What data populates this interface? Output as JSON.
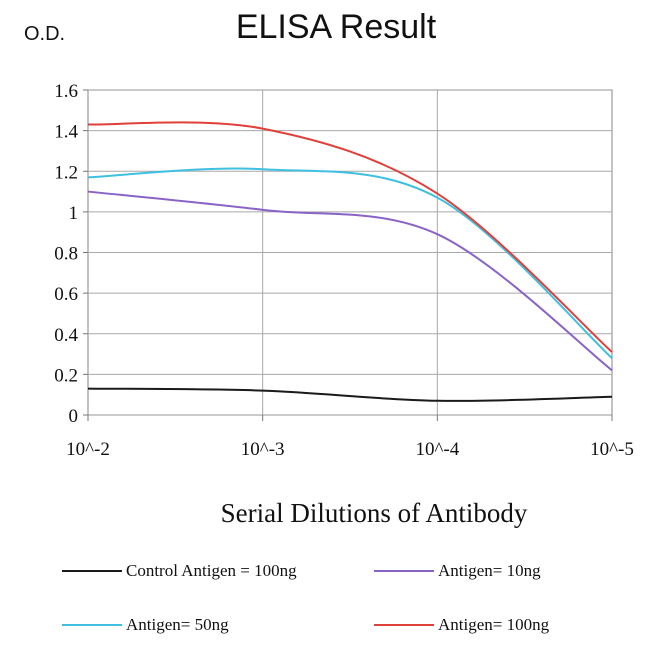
{
  "chart_data": {
    "type": "line",
    "title": "ELISA Result",
    "ylabel": "O.D.",
    "xlabel": "Serial Dilutions of Antibody",
    "categories": [
      "10^-2",
      "10^-3",
      "10^-4",
      "10^-5"
    ],
    "ylim": [
      0,
      1.6
    ],
    "yticks": [
      0,
      0.2,
      0.4,
      0.6,
      0.8,
      1,
      1.2,
      1.4,
      1.6
    ],
    "ytick_labels": [
      "0",
      "0.2",
      "0.4",
      "0.6",
      "0.8",
      "1",
      "1.2",
      "1.4",
      "1.6"
    ],
    "grid": true,
    "legend_position": "bottom",
    "series": [
      {
        "name": "Control Antigen = 100ng",
        "color": "#1a1a1a",
        "values": [
          0.13,
          0.12,
          0.07,
          0.09
        ]
      },
      {
        "name": "Antigen= 10ng",
        "color": "#8a63c7",
        "values": [
          1.1,
          1.01,
          0.89,
          0.22
        ]
      },
      {
        "name": "Antigen= 50ng",
        "color": "#3fc0e0",
        "values": [
          1.17,
          1.21,
          1.07,
          0.28
        ]
      },
      {
        "name": "Antigen= 100ng",
        "color": "#e0403a",
        "values": [
          1.43,
          1.41,
          1.09,
          0.31
        ]
      }
    ]
  }
}
